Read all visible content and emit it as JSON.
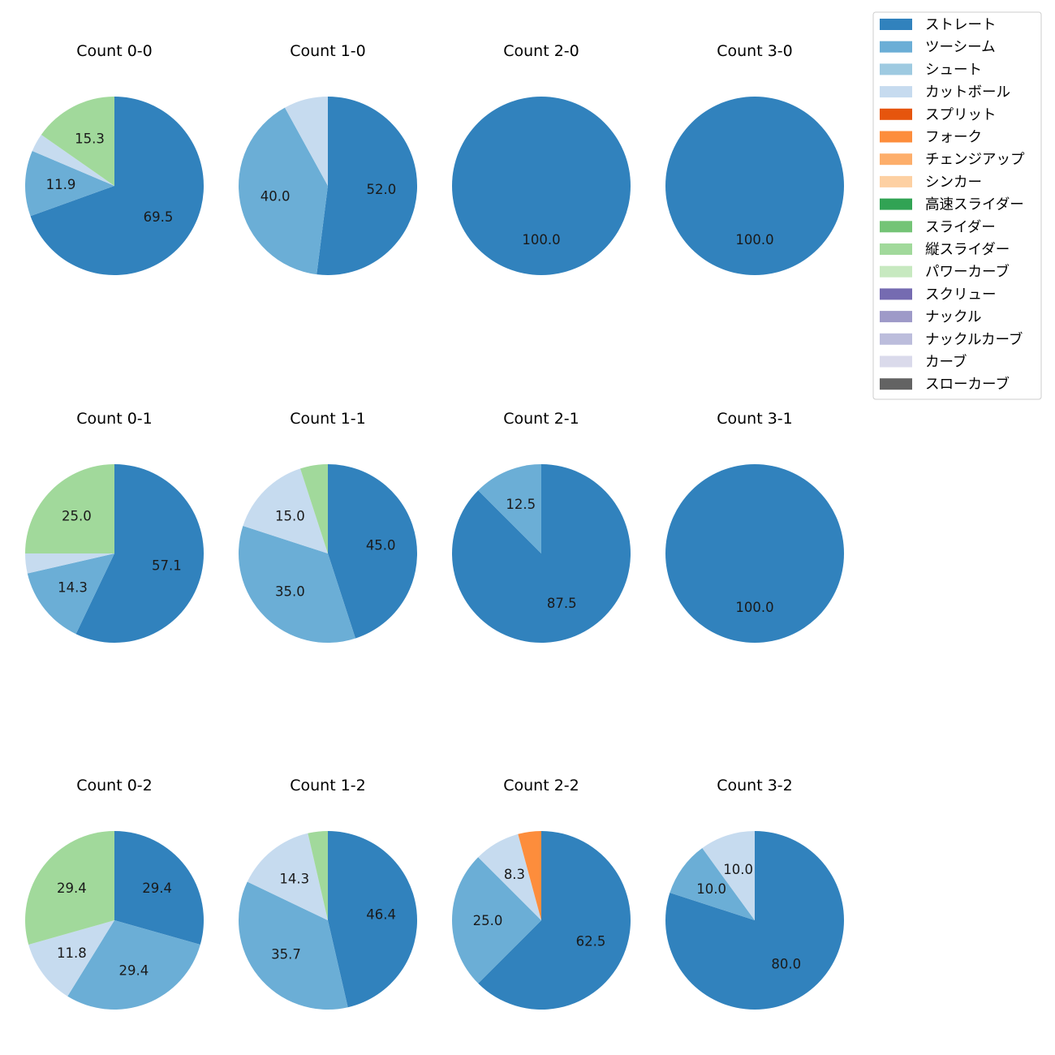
{
  "chart_data": {
    "type": "pie",
    "legend": {
      "placement": "top-right",
      "entries": [
        {
          "name": "ストレート",
          "color": "#3182bd"
        },
        {
          "name": "ツーシーム",
          "color": "#6baed6"
        },
        {
          "name": "シュート",
          "color": "#9ecae1"
        },
        {
          "name": "カットボール",
          "color": "#c6dbef"
        },
        {
          "name": "スプリット",
          "color": "#e6550d"
        },
        {
          "name": "フォーク",
          "color": "#fd8d3c"
        },
        {
          "name": "チェンジアップ",
          "color": "#fdae6b"
        },
        {
          "name": "シンカー",
          "color": "#fdd0a2"
        },
        {
          "name": "高速スライダー",
          "color": "#31a354"
        },
        {
          "name": "スライダー",
          "color": "#74c476"
        },
        {
          "name": "縦スライダー",
          "color": "#a1d99b"
        },
        {
          "name": "パワーカーブ",
          "color": "#c7e9c0"
        },
        {
          "name": "スクリュー",
          "color": "#756bb1"
        },
        {
          "name": "ナックル",
          "color": "#9e9ac8"
        },
        {
          "name": "ナックルカーブ",
          "color": "#bcbddc"
        },
        {
          "name": "カーブ",
          "color": "#dadaeb"
        },
        {
          "name": "スローカーブ",
          "color": "#636363"
        }
      ]
    },
    "pies": [
      {
        "title": "Count 0-0",
        "slices": [
          {
            "pitch": "ストレート",
            "value": 69.5,
            "label": "69.5"
          },
          {
            "pitch": "ツーシーム",
            "value": 11.9,
            "label": "11.9"
          },
          {
            "pitch": "カットボール",
            "value": 3.3,
            "label": ""
          },
          {
            "pitch": "縦スライダー",
            "value": 15.3,
            "label": "15.3"
          }
        ]
      },
      {
        "title": "Count 1-0",
        "slices": [
          {
            "pitch": "ストレート",
            "value": 52.0,
            "label": "52.0"
          },
          {
            "pitch": "ツーシーム",
            "value": 40.0,
            "label": "40.0"
          },
          {
            "pitch": "カットボール",
            "value": 8.0,
            "label": ""
          }
        ]
      },
      {
        "title": "Count 2-0",
        "slices": [
          {
            "pitch": "ストレート",
            "value": 100.0,
            "label": "100.0"
          }
        ]
      },
      {
        "title": "Count 3-0",
        "slices": [
          {
            "pitch": "ストレート",
            "value": 100.0,
            "label": "100.0"
          }
        ]
      },
      {
        "title": "Count 0-1",
        "slices": [
          {
            "pitch": "ストレート",
            "value": 57.1,
            "label": "57.1"
          },
          {
            "pitch": "ツーシーム",
            "value": 14.3,
            "label": "14.3"
          },
          {
            "pitch": "カットボール",
            "value": 3.6,
            "label": ""
          },
          {
            "pitch": "縦スライダー",
            "value": 25.0,
            "label": "25.0"
          }
        ]
      },
      {
        "title": "Count 1-1",
        "slices": [
          {
            "pitch": "ストレート",
            "value": 45.0,
            "label": "45.0"
          },
          {
            "pitch": "ツーシーム",
            "value": 35.0,
            "label": "35.0"
          },
          {
            "pitch": "カットボール",
            "value": 15.0,
            "label": "15.0"
          },
          {
            "pitch": "縦スライダー",
            "value": 5.0,
            "label": ""
          }
        ]
      },
      {
        "title": "Count 2-1",
        "slices": [
          {
            "pitch": "ストレート",
            "value": 87.5,
            "label": "87.5"
          },
          {
            "pitch": "ツーシーム",
            "value": 12.5,
            "label": "12.5"
          }
        ]
      },
      {
        "title": "Count 3-1",
        "slices": [
          {
            "pitch": "ストレート",
            "value": 100.0,
            "label": "100.0"
          }
        ]
      },
      {
        "title": "Count 0-2",
        "slices": [
          {
            "pitch": "ストレート",
            "value": 29.4,
            "label": "29.4"
          },
          {
            "pitch": "ツーシーム",
            "value": 29.4,
            "label": "29.4"
          },
          {
            "pitch": "カットボール",
            "value": 11.8,
            "label": "11.8"
          },
          {
            "pitch": "縦スライダー",
            "value": 29.4,
            "label": "29.4"
          }
        ]
      },
      {
        "title": "Count 1-2",
        "slices": [
          {
            "pitch": "ストレート",
            "value": 46.4,
            "label": "46.4"
          },
          {
            "pitch": "ツーシーム",
            "value": 35.7,
            "label": "35.7"
          },
          {
            "pitch": "カットボール",
            "value": 14.3,
            "label": "14.3"
          },
          {
            "pitch": "縦スライダー",
            "value": 3.6,
            "label": ""
          }
        ]
      },
      {
        "title": "Count 2-2",
        "slices": [
          {
            "pitch": "ストレート",
            "value": 62.5,
            "label": "62.5"
          },
          {
            "pitch": "ツーシーム",
            "value": 25.0,
            "label": "25.0"
          },
          {
            "pitch": "カットボール",
            "value": 8.3,
            "label": "8.3"
          },
          {
            "pitch": "フォーク",
            "value": 4.2,
            "label": ""
          }
        ]
      },
      {
        "title": "Count 3-2",
        "slices": [
          {
            "pitch": "ストレート",
            "value": 80.0,
            "label": "80.0"
          },
          {
            "pitch": "ツーシーム",
            "value": 10.0,
            "label": "10.0"
          },
          {
            "pitch": "カットボール",
            "value": 10.0,
            "label": "10.0"
          }
        ]
      }
    ]
  }
}
